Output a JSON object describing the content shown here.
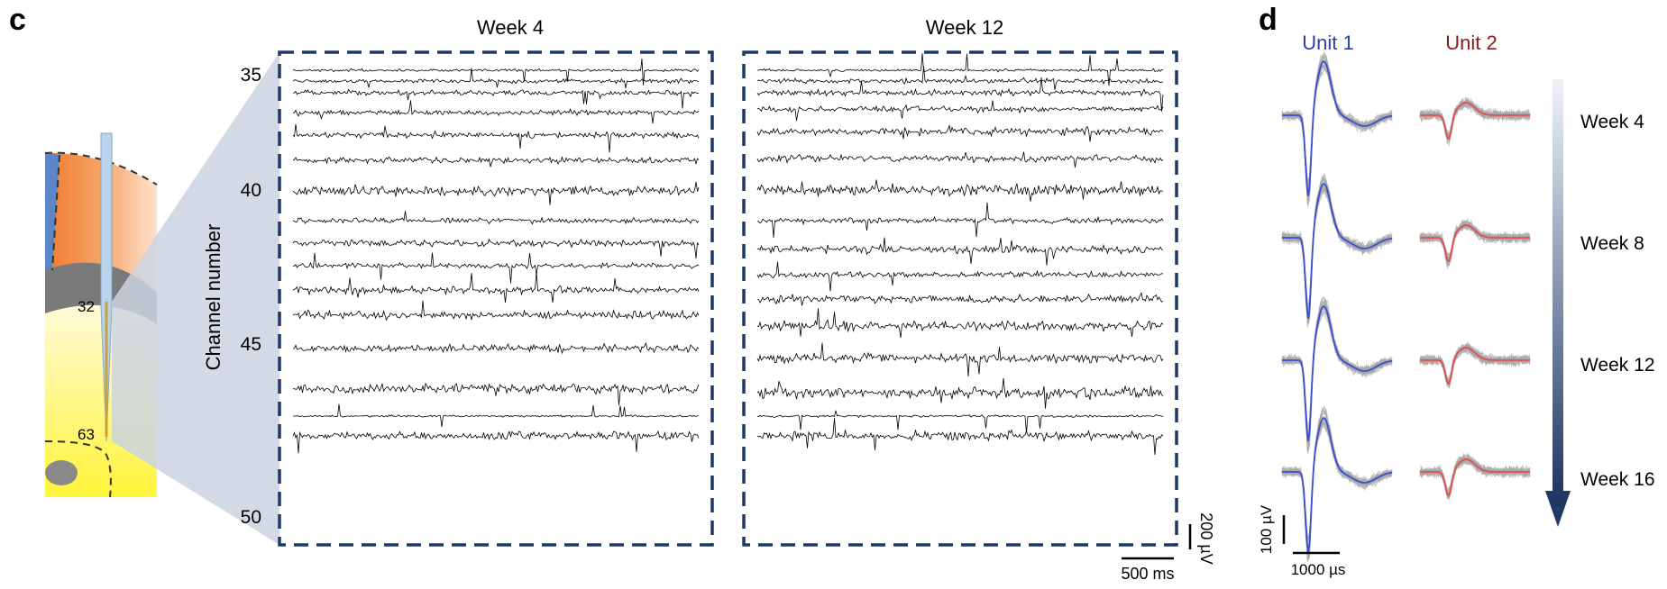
{
  "panel_c": {
    "letter": "c",
    "probe_labels": [
      "32",
      "63"
    ],
    "y_axis_label": "Channel number",
    "channel_ticks": [
      "35",
      "40",
      "45",
      "50"
    ],
    "recordings": [
      {
        "title": "Week 4"
      },
      {
        "title": "Week 12"
      }
    ],
    "scalebar_time": "500 ms",
    "scalebar_voltage": "200 µV",
    "colors": {
      "box_border": "#1f3864",
      "trace": "#000000",
      "funnel": "#cdd4e0"
    }
  },
  "panel_d": {
    "letter": "d",
    "units": [
      {
        "name": "Unit 1",
        "color": "#2b3fa8",
        "mean_color": "#3a4fd0"
      },
      {
        "name": "Unit 2",
        "color": "#8b1a1a",
        "mean_color": "#e05050"
      }
    ],
    "weeks": [
      "Week 4",
      "Week 8",
      "Week 12",
      "Week 16"
    ],
    "scalebar_voltage": "100 µV",
    "scalebar_time": "1000 µs",
    "colors": {
      "overlay_gray": "#a8a8a8",
      "arrow_top": "#f0f3f8",
      "arrow_bottom": "#1f3864"
    }
  }
}
